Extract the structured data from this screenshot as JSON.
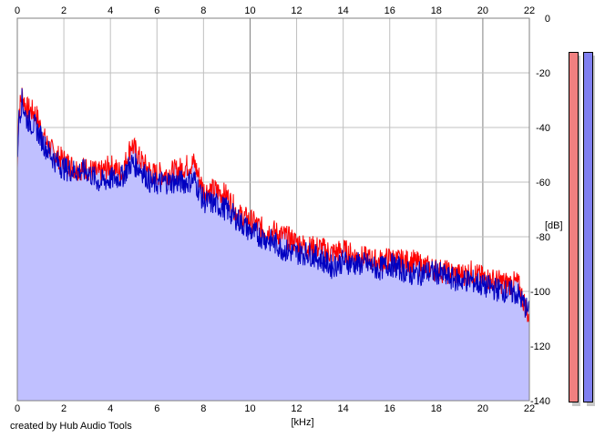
{
  "credit": "created by Hub Audio Tools",
  "colors": {
    "background": "#ffffff",
    "grid": "#c0c0c0",
    "grid_major": "#808080",
    "fill": "#c0c0ff",
    "left_channel": "#ff0000",
    "right_channel": "#0000c0",
    "meter_left": "#f08080",
    "meter_right": "#8080f0"
  },
  "meters": {
    "left_level_db": -126,
    "right_level_db": -125
  },
  "chart_data": {
    "type": "area",
    "title": "",
    "xlabel": "[kHz]",
    "ylabel": "[dB]",
    "xlim": [
      0,
      22
    ],
    "ylim": [
      -140,
      0
    ],
    "x_ticks": [
      "0",
      "2",
      "4",
      "6",
      "8",
      "10",
      "12",
      "14",
      "16",
      "18",
      "20",
      "22"
    ],
    "y_ticks": [
      "0",
      "-20",
      "-40",
      "-60",
      "-80",
      "-100",
      "-120",
      "-140"
    ],
    "grid": true,
    "legend": "none",
    "series": [
      {
        "color": "#ff0000",
        "x": [
          0,
          0.05,
          0.2,
          0.4,
          0.8,
          1.2,
          1.6,
          2.0,
          2.5,
          3.0,
          3.5,
          4.0,
          4.5,
          4.9,
          5.3,
          5.8,
          6.3,
          6.8,
          7.3,
          7.6,
          8.0,
          8.5,
          9.0,
          9.5,
          10.0,
          10.5,
          11.0,
          11.5,
          12.0,
          12.5,
          13.0,
          13.5,
          14.0,
          14.5,
          15.0,
          15.5,
          16.0,
          16.5,
          17.0,
          17.5,
          18.0,
          18.5,
          19.0,
          19.5,
          20.0,
          20.5,
          21.0,
          21.5,
          22.0
        ],
        "values": [
          -55,
          -35,
          -28,
          -33,
          -35,
          -45,
          -50,
          -52,
          -55,
          -55,
          -57,
          -54,
          -57,
          -46,
          -52,
          -57,
          -57,
          -56,
          -54,
          -53,
          -63,
          -63,
          -65,
          -72,
          -74,
          -77,
          -78,
          -80,
          -82,
          -84,
          -84,
          -86,
          -85,
          -87,
          -88,
          -89,
          -88,
          -89,
          -89,
          -91,
          -92,
          -93,
          -94,
          -93,
          -95,
          -96,
          -97,
          -97,
          -110
        ]
      },
      {
        "color": "#0000c0",
        "x": [
          0,
          0.05,
          0.2,
          0.4,
          0.8,
          1.2,
          1.6,
          2.0,
          2.5,
          3.0,
          3.5,
          4.0,
          4.5,
          4.9,
          5.3,
          5.8,
          6.3,
          6.8,
          7.3,
          7.6,
          8.0,
          8.5,
          9.0,
          9.5,
          10.0,
          10.5,
          11.0,
          11.5,
          12.0,
          12.5,
          13.0,
          13.5,
          14.0,
          14.5,
          15.0,
          15.5,
          16.0,
          16.5,
          17.0,
          17.5,
          18.0,
          18.5,
          19.0,
          19.5,
          20.0,
          20.5,
          21.0,
          21.5,
          22.0
        ],
        "values": [
          -53,
          -38,
          -30,
          -37,
          -40,
          -47,
          -52,
          -55,
          -56,
          -56,
          -60,
          -59,
          -58,
          -53,
          -55,
          -61,
          -60,
          -60,
          -60,
          -59,
          -67,
          -68,
          -70,
          -74,
          -78,
          -80,
          -82,
          -85,
          -86,
          -86,
          -88,
          -91,
          -89,
          -90,
          -90,
          -92,
          -90,
          -92,
          -94,
          -93,
          -93,
          -95,
          -96,
          -96,
          -98,
          -99,
          -100,
          -101,
          -108
        ]
      }
    ]
  }
}
